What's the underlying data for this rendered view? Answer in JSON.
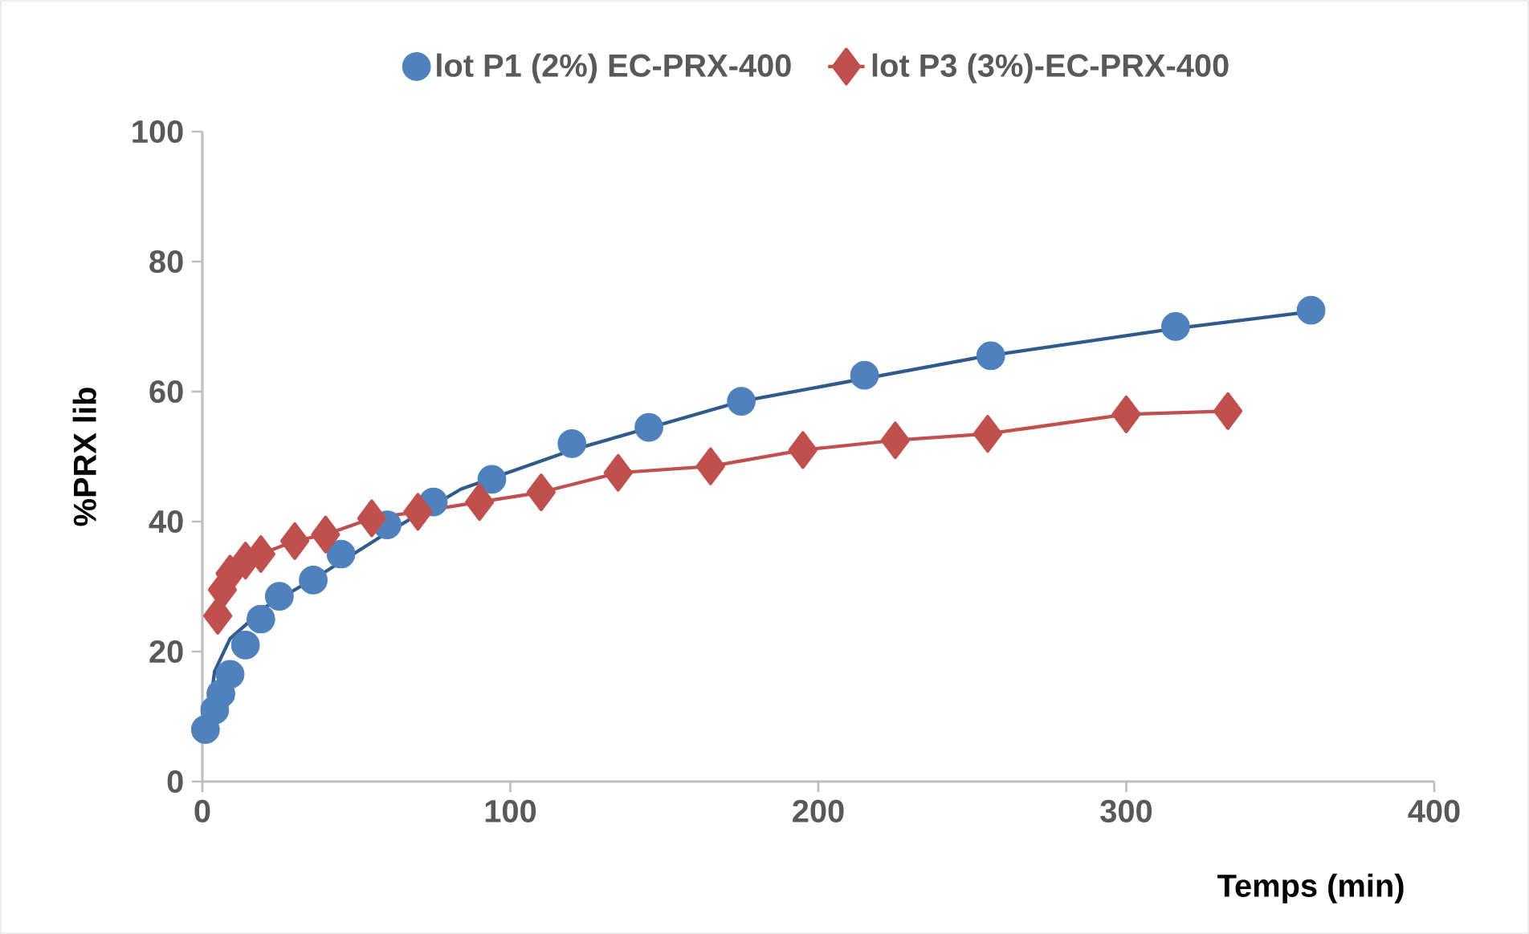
{
  "chart_data": {
    "type": "scatter",
    "xlabel": "Temps (min)",
    "ylabel": "%PRX lib",
    "xlim": [
      0,
      400
    ],
    "ylim": [
      0,
      100
    ],
    "xticks": [
      0,
      100,
      200,
      300,
      400
    ],
    "yticks": [
      0,
      20,
      40,
      60,
      80,
      100
    ],
    "legend": "top",
    "grid": false,
    "series": [
      {
        "name": "lot P1 (2%) EC-PRX-400",
        "marker": "circle",
        "color": "#4f81bd",
        "x": [
          1,
          4,
          6,
          9,
          14,
          19,
          25,
          36,
          45,
          60,
          75,
          94,
          120,
          145,
          175,
          215,
          256,
          316,
          360
        ],
        "values": [
          8,
          11,
          13.5,
          16.5,
          21,
          25,
          28.5,
          31,
          35,
          39.5,
          43,
          46.5,
          52,
          54.5,
          58.5,
          62.5,
          65.5,
          70,
          72.5
        ]
      },
      {
        "name": "lot P3 (3%)-EC-PRX-400",
        "type": "line",
        "marker": "diamond",
        "line_style": "solid",
        "color": "#c0504d",
        "x": [
          5,
          6.5,
          9,
          14,
          19,
          30,
          40,
          55,
          70,
          90,
          110,
          135,
          165,
          195,
          225,
          255,
          300,
          333
        ],
        "values": [
          25.5,
          29.5,
          32,
          34,
          35,
          37,
          38,
          40.5,
          41.5,
          43,
          44.5,
          47.5,
          48.5,
          51,
          52.5,
          53.5,
          56.5,
          57
        ]
      },
      {
        "type": "line",
        "marker": "none",
        "line_style": "solid",
        "color": "#2f5b8c",
        "x": [
          1.5,
          4,
          9,
          21,
          39,
          59,
          84,
          120,
          175,
          255,
          316,
          360
        ],
        "values": [
          8.6,
          17,
          22,
          27,
          32,
          38,
          45,
          51,
          58.5,
          65.5,
          69.7,
          72.3
        ]
      }
    ]
  }
}
